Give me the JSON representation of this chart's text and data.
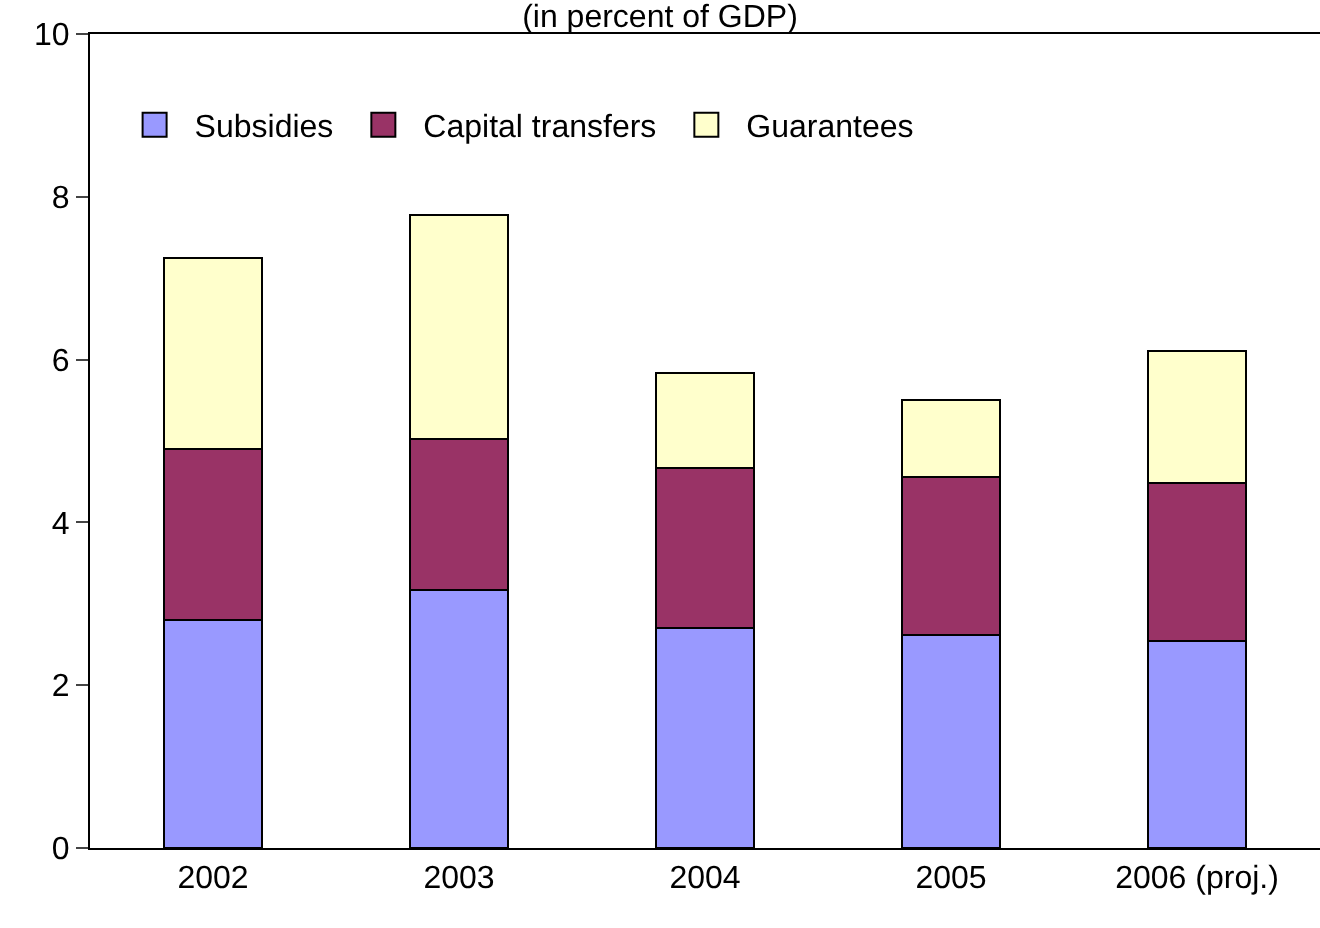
{
  "chart_data": {
    "type": "bar",
    "title": "(in percent of GDP)",
    "stacked": true,
    "categories": [
      "2002",
      "2003",
      "2004",
      "2005",
      "2006 (proj.)"
    ],
    "series": [
      {
        "name": "Subsidies",
        "color": "#9999ff",
        "values": [
          2.8,
          3.17,
          2.7,
          2.62,
          2.54
        ]
      },
      {
        "name": "Capital transfers",
        "color": "#993366",
        "values": [
          2.1,
          1.86,
          1.97,
          1.94,
          1.94
        ]
      },
      {
        "name": "Guarantees",
        "color": "#ffffcc",
        "values": [
          2.35,
          2.75,
          1.17,
          0.94,
          1.62
        ]
      }
    ],
    "ylim": [
      0,
      10
    ],
    "yticks": [
      0,
      2,
      4,
      6,
      8,
      10
    ],
    "grid": false,
    "legend": "top left"
  }
}
